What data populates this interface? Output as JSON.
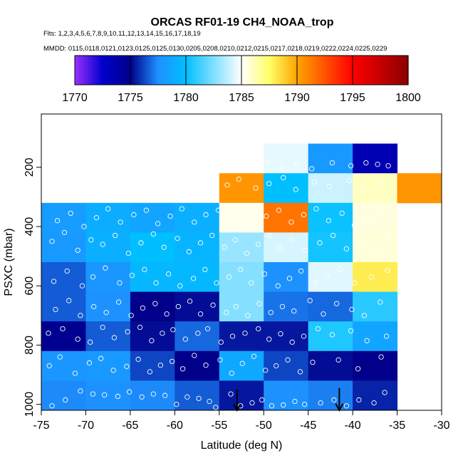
{
  "chart_data": {
    "type": "heatmap",
    "title": "ORCAS RF01-19 CH4_NOAA_trop",
    "flights_label": "Flts: 1,2,3,4,5,6,7,8,9,10,11,12,13,14,15,16,17,18,19",
    "dates_label": "MMDD: 0115,0118,0121,0123,0125,0125,0130,0205,0208,0210,0212,0215,0217,0218,0219,0222,0224,0225,0229",
    "xlabel": "Latitude (deg N)",
    "ylabel": "PSXC (mbar)",
    "xlim": [
      -75,
      -30
    ],
    "ylim": [
      1020,
      20
    ],
    "x_ticks": [
      -75,
      -70,
      -65,
      -60,
      -55,
      -50,
      -45,
      -40,
      -35,
      -30
    ],
    "x_tick_labels": [
      "-75",
      "-70",
      "-65",
      "-60",
      "-55",
      "-50",
      "-45",
      "-40",
      "-35",
      "-30"
    ],
    "y_ticks": [
      200,
      400,
      600,
      800,
      1000
    ],
    "y_tick_labels": [
      "200",
      "400",
      "600",
      "800",
      "1000"
    ],
    "colorbar": {
      "min": 1770,
      "max": 1800,
      "ticks": [
        1770,
        1775,
        1780,
        1785,
        1790,
        1795,
        1800
      ],
      "tick_labels": [
        "1770",
        "1775",
        "1780",
        "1785",
        "1790",
        "1795",
        "1800"
      ],
      "stops": [
        {
          "v": 1770,
          "color": "#9b30ff"
        },
        {
          "v": 1772.5,
          "color": "#0000cd"
        },
        {
          "v": 1775,
          "color": "#00008b"
        },
        {
          "v": 1777.5,
          "color": "#1e90ff"
        },
        {
          "v": 1780,
          "color": "#00bfff"
        },
        {
          "v": 1785,
          "color": "#ffffff"
        },
        {
          "v": 1787.5,
          "color": "#ffff66"
        },
        {
          "v": 1790,
          "color": "#ffa500"
        },
        {
          "v": 1795,
          "color": "#ff0000"
        },
        {
          "v": 1800,
          "color": "#8b0000"
        }
      ]
    },
    "x_edges": [
      -75,
      -70,
      -65,
      -60,
      -55,
      -50,
      -45,
      -40,
      -35,
      -30
    ],
    "y_edges": [
      20,
      120,
      220,
      320,
      420,
      520,
      620,
      720,
      820,
      920,
      1020
    ],
    "cells": [
      {
        "x": 4,
        "y": 2,
        "v": 1790.5
      },
      {
        "x": 5,
        "y": 1,
        "v": 1784.5
      },
      {
        "x": 5,
        "y": 2,
        "v": 1780.0
      },
      {
        "x": 6,
        "y": 1,
        "v": 1778.0
      },
      {
        "x": 6,
        "y": 2,
        "v": 1784.0
      },
      {
        "x": 7,
        "y": 1,
        "v": 1773.5
      },
      {
        "x": 7,
        "y": 2,
        "v": 1786.0
      },
      {
        "x": 8,
        "y": 2,
        "v": 1790.5
      },
      {
        "x": 0,
        "y": 3,
        "v": 1778.2
      },
      {
        "x": 1,
        "y": 3,
        "v": 1779.0
      },
      {
        "x": 2,
        "y": 3,
        "v": 1778.6
      },
      {
        "x": 3,
        "y": 3,
        "v": 1779.2
      },
      {
        "x": 4,
        "y": 3,
        "v": 1785.3
      },
      {
        "x": 5,
        "y": 3,
        "v": 1791.5
      },
      {
        "x": 6,
        "y": 3,
        "v": 1780.2
      },
      {
        "x": 7,
        "y": 3,
        "v": 1785.5
      },
      {
        "x": 0,
        "y": 4,
        "v": 1778.0
      },
      {
        "x": 1,
        "y": 4,
        "v": 1779.2
      },
      {
        "x": 2,
        "y": 4,
        "v": 1780.0
      },
      {
        "x": 3,
        "y": 4,
        "v": 1779.4
      },
      {
        "x": 4,
        "y": 4,
        "v": 1783.0
      },
      {
        "x": 5,
        "y": 4,
        "v": 1784.2
      },
      {
        "x": 6,
        "y": 4,
        "v": 1780.4
      },
      {
        "x": 7,
        "y": 4,
        "v": 1785.6
      },
      {
        "x": 0,
        "y": 5,
        "v": 1776.6
      },
      {
        "x": 1,
        "y": 5,
        "v": 1777.8
      },
      {
        "x": 2,
        "y": 5,
        "v": 1779.6
      },
      {
        "x": 3,
        "y": 5,
        "v": 1779.6
      },
      {
        "x": 4,
        "y": 5,
        "v": 1782.6
      },
      {
        "x": 5,
        "y": 5,
        "v": 1777.6
      },
      {
        "x": 6,
        "y": 5,
        "v": 1784.4
      },
      {
        "x": 7,
        "y": 5,
        "v": 1788.0
      },
      {
        "x": 0,
        "y": 6,
        "v": 1776.6
      },
      {
        "x": 1,
        "y": 6,
        "v": 1777.6
      },
      {
        "x": 2,
        "y": 6,
        "v": 1775.0
      },
      {
        "x": 3,
        "y": 6,
        "v": 1775.2
      },
      {
        "x": 4,
        "y": 6,
        "v": 1782.6
      },
      {
        "x": 5,
        "y": 6,
        "v": 1777.0
      },
      {
        "x": 6,
        "y": 6,
        "v": 1776.8
      },
      {
        "x": 7,
        "y": 6,
        "v": 1780.8
      },
      {
        "x": 0,
        "y": 7,
        "v": 1774.8
      },
      {
        "x": 1,
        "y": 7,
        "v": 1776.6
      },
      {
        "x": 2,
        "y": 7,
        "v": 1775.2
      },
      {
        "x": 3,
        "y": 7,
        "v": 1776.8
      },
      {
        "x": 4,
        "y": 7,
        "v": 1775.4
      },
      {
        "x": 5,
        "y": 7,
        "v": 1775.4
      },
      {
        "x": 6,
        "y": 7,
        "v": 1780.6
      },
      {
        "x": 7,
        "y": 7,
        "v": 1778.6
      },
      {
        "x": 0,
        "y": 8,
        "v": 1777.8
      },
      {
        "x": 1,
        "y": 8,
        "v": 1778.0
      },
      {
        "x": 2,
        "y": 8,
        "v": 1776.2
      },
      {
        "x": 3,
        "y": 8,
        "v": 1775.0
      },
      {
        "x": 4,
        "y": 8,
        "v": 1778.8
      },
      {
        "x": 5,
        "y": 8,
        "v": 1776.2
      },
      {
        "x": 6,
        "y": 8,
        "v": 1775.2
      },
      {
        "x": 7,
        "y": 8,
        "v": 1775.0
      },
      {
        "x": 0,
        "y": 9,
        "v": 1777.4
      },
      {
        "x": 1,
        "y": 9,
        "v": 1777.6
      },
      {
        "x": 2,
        "y": 9,
        "v": 1777.4
      },
      {
        "x": 3,
        "y": 9,
        "v": 1776.6
      },
      {
        "x": 4,
        "y": 9,
        "v": 1775.4
      },
      {
        "x": 5,
        "y": 9,
        "v": 1777.6
      },
      {
        "x": 6,
        "y": 9,
        "v": 1777.2
      },
      {
        "x": 7,
        "y": 9,
        "v": 1775.6
      }
    ],
    "arrows": [
      {
        "x": -53.0,
        "p_from": 950,
        "p_to": 1020
      },
      {
        "x": -41.5,
        "p_from": 945,
        "p_to": 1020
      }
    ],
    "points": [
      [
        -73.8,
        1005
      ],
      [
        -72.3,
        985
      ],
      [
        -70.6,
        955
      ],
      [
        -69.2,
        965
      ],
      [
        -67.9,
        968
      ],
      [
        -66.4,
        973
      ],
      [
        -65.1,
        958
      ],
      [
        -63.7,
        975
      ],
      [
        -62.4,
        965
      ],
      [
        -61.1,
        970
      ],
      [
        -59.8,
        1000
      ],
      [
        -58.6,
        975
      ],
      [
        -57.3,
        980
      ],
      [
        -56.1,
        990
      ],
      [
        -55.4,
        1010
      ],
      [
        -53.7,
        965
      ],
      [
        -52.6,
        1005
      ],
      [
        -51.3,
        995
      ],
      [
        -50.2,
        985
      ],
      [
        -49.1,
        1005
      ],
      [
        -47.8,
        1002
      ],
      [
        -46.5,
        990
      ],
      [
        -45.4,
        1000
      ],
      [
        -43.6,
        995
      ],
      [
        -42.1,
        985
      ],
      [
        -40.7,
        1005
      ],
      [
        -39.3,
        985
      ],
      [
        -37.6,
        995
      ],
      [
        -36.4,
        960
      ],
      [
        -74.1,
        870
      ],
      [
        -72.9,
        840
      ],
      [
        -71.2,
        895
      ],
      [
        -69.6,
        860
      ],
      [
        -68.3,
        845
      ],
      [
        -66.9,
        885
      ],
      [
        -65.4,
        872
      ],
      [
        -64.1,
        848
      ],
      [
        -62.8,
        890
      ],
      [
        -61.6,
        868
      ],
      [
        -60.3,
        855
      ],
      [
        -59.1,
        880
      ],
      [
        -57.8,
        835
      ],
      [
        -56.5,
        868
      ],
      [
        -54.9,
        850
      ],
      [
        -53.6,
        895
      ],
      [
        -52.4,
        862
      ],
      [
        -51.1,
        838
      ],
      [
        -49.8,
        885
      ],
      [
        -48.6,
        870
      ],
      [
        -47.3,
        850
      ],
      [
        -45.9,
        890
      ],
      [
        -44.5,
        858
      ],
      [
        -41.6,
        850
      ],
      [
        -39.4,
        880
      ],
      [
        -36.8,
        840
      ],
      [
        -74.2,
        760
      ],
      [
        -72.6,
        745
      ],
      [
        -70.9,
        780
      ],
      [
        -69.5,
        790
      ],
      [
        -68.1,
        740
      ],
      [
        -66.8,
        775
      ],
      [
        -65.3,
        755
      ],
      [
        -63.9,
        740
      ],
      [
        -62.6,
        785
      ],
      [
        -61.4,
        760
      ],
      [
        -60.2,
        748
      ],
      [
        -58.8,
        780
      ],
      [
        -57.4,
        760
      ],
      [
        -56.3,
        745
      ],
      [
        -54.8,
        790
      ],
      [
        -53.5,
        770
      ],
      [
        -52.1,
        760
      ],
      [
        -50.6,
        745
      ],
      [
        -49.4,
        780
      ],
      [
        -48.1,
        762
      ],
      [
        -46.8,
        790
      ],
      [
        -45.5,
        770
      ],
      [
        -43.9,
        745
      ],
      [
        -42.3,
        765
      ],
      [
        -40.2,
        752
      ],
      [
        -38.4,
        785
      ],
      [
        -36.2,
        770
      ],
      [
        -73.4,
        680
      ],
      [
        -71.9,
        650
      ],
      [
        -70.6,
        700
      ],
      [
        -69.1,
        670
      ],
      [
        -67.7,
        690
      ],
      [
        -66.3,
        655
      ],
      [
        -64.9,
        700
      ],
      [
        -63.6,
        675
      ],
      [
        -62.2,
        660
      ],
      [
        -60.9,
        695
      ],
      [
        -59.6,
        670
      ],
      [
        -58.3,
        652
      ],
      [
        -57.1,
        695
      ],
      [
        -55.7,
        665
      ],
      [
        -54.2,
        690
      ],
      [
        -53.1,
        670
      ],
      [
        -51.8,
        700
      ],
      [
        -50.5,
        660
      ],
      [
        -49.2,
        690
      ],
      [
        -47.9,
        670
      ],
      [
        -46.6,
        685
      ],
      [
        -44.8,
        650
      ],
      [
        -43.3,
        695
      ],
      [
        -41.8,
        660
      ],
      [
        -40.1,
        680
      ],
      [
        -38.7,
        700
      ],
      [
        -36.9,
        655
      ],
      [
        -73.6,
        585
      ],
      [
        -72.1,
        550
      ],
      [
        -70.4,
        600
      ],
      [
        -69.2,
        570
      ],
      [
        -67.8,
        540
      ],
      [
        -66.2,
        590
      ],
      [
        -64.8,
        565
      ],
      [
        -63.4,
        545
      ],
      [
        -62.1,
        590
      ],
      [
        -60.7,
        560
      ],
      [
        -59.4,
        600
      ],
      [
        -57.9,
        575
      ],
      [
        -56.6,
        545
      ],
      [
        -55.3,
        590
      ],
      [
        -53.9,
        570
      ],
      [
        -52.6,
        545
      ],
      [
        -51.4,
        590
      ],
      [
        -49.9,
        560
      ],
      [
        -48.4,
        600
      ],
      [
        -47.1,
        575
      ],
      [
        -45.8,
        550
      ],
      [
        -44.2,
        590
      ],
      [
        -42.9,
        565
      ],
      [
        -41.4,
        545
      ],
      [
        -39.8,
        590
      ],
      [
        -37.9,
        570
      ],
      [
        -36.1,
        548
      ],
      [
        -73.8,
        450
      ],
      [
        -72.4,
        420
      ],
      [
        -70.9,
        480
      ],
      [
        -69.4,
        445
      ],
      [
        -68.1,
        460
      ],
      [
        -66.7,
        430
      ],
      [
        -65.2,
        490
      ],
      [
        -63.8,
        455
      ],
      [
        -62.4,
        425
      ],
      [
        -61.2,
        470
      ],
      [
        -59.7,
        440
      ],
      [
        -58.4,
        485
      ],
      [
        -57.1,
        455
      ],
      [
        -55.8,
        430
      ],
      [
        -54.4,
        470
      ],
      [
        -53.2,
        445
      ],
      [
        -51.9,
        490
      ],
      [
        -50.6,
        460
      ],
      [
        -49.3,
        430
      ],
      [
        -48.2,
        470
      ],
      [
        -46.9,
        445
      ],
      [
        -45.3,
        480
      ],
      [
        -43.7,
        455
      ],
      [
        -42.2,
        430
      ],
      [
        -40.7,
        475
      ],
      [
        -39.1,
        450
      ],
      [
        -37.5,
        485
      ],
      [
        -36.2,
        440
      ],
      [
        -73.2,
        380
      ],
      [
        -71.7,
        355
      ],
      [
        -70.2,
        400
      ],
      [
        -68.8,
        370
      ],
      [
        -67.5,
        340
      ],
      [
        -66.1,
        385
      ],
      [
        -64.6,
        360
      ],
      [
        -63.2,
        345
      ],
      [
        -61.9,
        390
      ],
      [
        -60.5,
        365
      ],
      [
        -59.2,
        340
      ],
      [
        -57.8,
        385
      ],
      [
        -56.5,
        360
      ],
      [
        -55.1,
        345
      ],
      [
        -53.8,
        380
      ],
      [
        -52.4,
        355
      ],
      [
        -51.1,
        390
      ],
      [
        -49.7,
        365
      ],
      [
        -48.3,
        345
      ],
      [
        -46.9,
        385
      ],
      [
        -45.5,
        360
      ],
      [
        -44.1,
        340
      ],
      [
        -42.7,
        380
      ],
      [
        -41.2,
        355
      ],
      [
        -39.8,
        395
      ],
      [
        -38.3,
        370
      ],
      [
        -36.9,
        345
      ],
      [
        -54.1,
        260
      ],
      [
        -52.8,
        240
      ],
      [
        -50.9,
        270
      ],
      [
        -49.4,
        255
      ],
      [
        -47.8,
        235
      ],
      [
        -46.4,
        275
      ],
      [
        -44.3,
        250
      ],
      [
        -42.6,
        265
      ],
      [
        -40.4,
        245
      ],
      [
        -38.9,
        270
      ],
      [
        -36.7,
        255
      ],
      [
        -49.5,
        185
      ],
      [
        -48.0,
        200
      ],
      [
        -46.2,
        190
      ],
      [
        -44.6,
        205
      ],
      [
        -42.3,
        185
      ],
      [
        -40.2,
        195
      ],
      [
        -38.5,
        185
      ],
      [
        -37.2,
        190
      ],
      [
        -36.0,
        195
      ]
    ]
  }
}
